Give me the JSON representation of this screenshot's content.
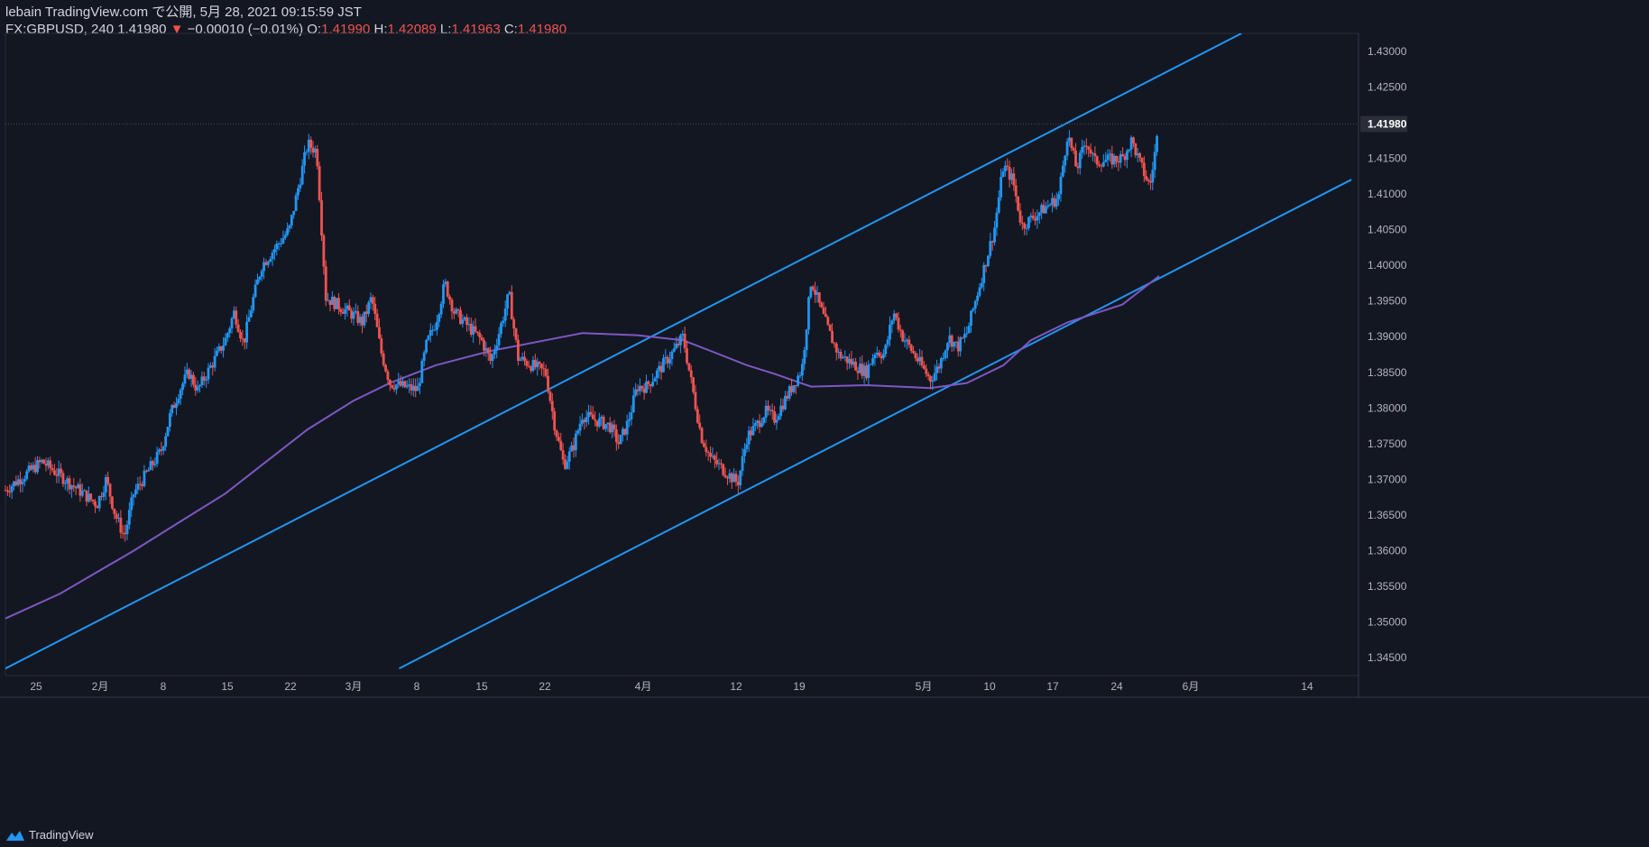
{
  "header": {
    "line1": "lebain TradingView.com で公開, 5月 28, 2021 09:15:59 JST",
    "symbol": "FX:GBPUSD, 240",
    "last": "1.41980",
    "change": "−0.00010 (−0.01%)",
    "o_label": "O:",
    "o_val": "1.41990",
    "h_label": "H:",
    "h_val": "1.42089",
    "l_label": "L:",
    "l_val": "1.41963",
    "c_label": "C:",
    "c_val": "1.41980"
  },
  "footer": {
    "brand": "TradingView"
  },
  "colors": {
    "background": "#131722",
    "up": "#2196f3",
    "down": "#ef5350",
    "ma": "#7e57c2",
    "trendline": "#2196f3",
    "text": "#d1d4dc",
    "axis_text": "#b2b5be"
  },
  "chart_data": {
    "type": "candlestick",
    "symbol": "FX:GBPUSD",
    "timeframe": "240",
    "x_tick_labels": [
      "25",
      "2月",
      "8",
      "15",
      "22",
      "3月",
      "8",
      "15",
      "22",
      "4月",
      "12",
      "19",
      "5月",
      "10",
      "17",
      "24",
      "6月",
      "14"
    ],
    "y_tick_labels": [
      "1.43000",
      "1.42500",
      "1.42000",
      "1.41500",
      "1.41000",
      "1.40500",
      "1.40000",
      "1.39500",
      "1.39000",
      "1.38500",
      "1.38000",
      "1.37500",
      "1.37000",
      "1.36500",
      "1.36000",
      "1.35500",
      "1.35000",
      "1.34500"
    ],
    "ylim": [
      1.3425,
      1.4325
    ],
    "last_price_label": "1.41980",
    "price_path": [
      [
        "2021-01-22",
        1.3685
      ],
      [
        "2021-01-26",
        1.3725
      ],
      [
        "2021-01-28",
        1.3705
      ],
      [
        "2021-01-29",
        1.3695
      ],
      [
        "2021-02-01",
        1.3665
      ],
      [
        "2021-02-02",
        1.37
      ],
      [
        "2021-02-03",
        1.365
      ],
      [
        "2021-02-04",
        1.362
      ],
      [
        "2021-02-05",
        1.368
      ],
      [
        "2021-02-08",
        1.374
      ],
      [
        "2021-02-09",
        1.379
      ],
      [
        "2021-02-10",
        1.3825
      ],
      [
        "2021-02-11",
        1.385
      ],
      [
        "2021-02-12",
        1.3825
      ],
      [
        "2021-02-15",
        1.3895
      ],
      [
        "2021-02-16",
        1.3935
      ],
      [
        "2021-02-17",
        1.389
      ],
      [
        "2021-02-18",
        1.395
      ],
      [
        "2021-02-19",
        1.4
      ],
      [
        "2021-02-22",
        1.405
      ],
      [
        "2021-02-23",
        1.411
      ],
      [
        "2021-02-24",
        1.417
      ],
      [
        "2021-02-25",
        1.416
      ],
      [
        "2021-02-26",
        1.3955
      ],
      [
        "2021-03-01",
        1.393
      ],
      [
        "2021-03-02",
        1.392
      ],
      [
        "2021-03-03",
        1.3955
      ],
      [
        "2021-03-04",
        1.388
      ],
      [
        "2021-03-05",
        1.3835
      ],
      [
        "2021-03-08",
        1.3825
      ],
      [
        "2021-03-09",
        1.389
      ],
      [
        "2021-03-10",
        1.392
      ],
      [
        "2021-03-11",
        1.3975
      ],
      [
        "2021-03-12",
        1.3935
      ],
      [
        "2021-03-15",
        1.3895
      ],
      [
        "2021-03-16",
        1.3865
      ],
      [
        "2021-03-17",
        1.391
      ],
      [
        "2021-03-18",
        1.396
      ],
      [
        "2021-03-19",
        1.387
      ],
      [
        "2021-03-22",
        1.385
      ],
      [
        "2021-03-23",
        1.3775
      ],
      [
        "2021-03-24",
        1.372
      ],
      [
        "2021-03-25",
        1.3745
      ],
      [
        "2021-03-26",
        1.379
      ],
      [
        "2021-03-29",
        1.3775
      ],
      [
        "2021-03-30",
        1.375
      ],
      [
        "2021-03-31",
        1.378
      ],
      [
        "2021-04-01",
        1.383
      ],
      [
        "2021-04-02",
        1.383
      ],
      [
        "2021-04-05",
        1.388
      ],
      [
        "2021-04-06",
        1.39
      ],
      [
        "2021-04-07",
        1.383
      ],
      [
        "2021-04-08",
        1.376
      ],
      [
        "2021-04-09",
        1.373
      ],
      [
        "2021-04-12",
        1.3695
      ],
      [
        "2021-04-13",
        1.376
      ],
      [
        "2021-04-14",
        1.3775
      ],
      [
        "2021-04-15",
        1.3795
      ],
      [
        "2021-04-16",
        1.3785
      ],
      [
        "2021-04-19",
        1.3855
      ],
      [
        "2021-04-20",
        1.398
      ],
      [
        "2021-04-21",
        1.394
      ],
      [
        "2021-04-22",
        1.3905
      ],
      [
        "2021-04-23",
        1.3875
      ],
      [
        "2021-04-26",
        1.385
      ],
      [
        "2021-04-27",
        1.388
      ],
      [
        "2021-04-28",
        1.3875
      ],
      [
        "2021-04-29",
        1.3935
      ],
      [
        "2021-04-30",
        1.39
      ],
      [
        "2021-05-03",
        1.384
      ],
      [
        "2021-05-04",
        1.386
      ],
      [
        "2021-05-05",
        1.39
      ],
      [
        "2021-05-06",
        1.3885
      ],
      [
        "2021-05-07",
        1.3905
      ],
      [
        "2021-05-10",
        1.405
      ],
      [
        "2021-05-11",
        1.414
      ],
      [
        "2021-05-12",
        1.412
      ],
      [
        "2021-05-13",
        1.4055
      ],
      [
        "2021-05-14",
        1.4065
      ],
      [
        "2021-05-17",
        1.4095
      ],
      [
        "2021-05-18",
        1.4185
      ],
      [
        "2021-05-19",
        1.4135
      ],
      [
        "2021-05-20",
        1.4175
      ],
      [
        "2021-05-21",
        1.4145
      ],
      [
        "2021-05-24",
        1.415
      ],
      [
        "2021-05-25",
        1.4175
      ],
      [
        "2021-05-26",
        1.414
      ],
      [
        "2021-05-27",
        1.411
      ],
      [
        "2021-05-28",
        1.4198
      ]
    ],
    "moving_average": {
      "color": "#7e57c2",
      "points": [
        [
          "2021-01-22",
          1.3505
        ],
        [
          "2021-01-28",
          1.354
        ],
        [
          "2021-02-01",
          1.357
        ],
        [
          "2021-02-05",
          1.36
        ],
        [
          "2021-02-10",
          1.364
        ],
        [
          "2021-02-15",
          1.368
        ],
        [
          "2021-02-19",
          1.372
        ],
        [
          "2021-02-24",
          1.377
        ],
        [
          "2021-03-01",
          1.381
        ],
        [
          "2021-03-05",
          1.3835
        ],
        [
          "2021-03-10",
          1.386
        ],
        [
          "2021-03-16",
          1.388
        ],
        [
          "2021-03-22",
          1.3895
        ],
        [
          "2021-03-26",
          1.3905
        ],
        [
          "2021-04-01",
          1.3902
        ],
        [
          "2021-04-06",
          1.3895
        ],
        [
          "2021-04-09",
          1.388
        ],
        [
          "2021-04-13",
          1.386
        ],
        [
          "2021-04-16",
          1.3848
        ],
        [
          "2021-04-20",
          1.383
        ],
        [
          "2021-04-26",
          1.3832
        ],
        [
          "2021-05-03",
          1.3828
        ],
        [
          "2021-05-07",
          1.3835
        ],
        [
          "2021-05-11",
          1.386
        ],
        [
          "2021-05-14",
          1.3895
        ],
        [
          "2021-05-18",
          1.392
        ],
        [
          "2021-05-24",
          1.3945
        ],
        [
          "2021-05-28",
          1.3985
        ]
      ]
    },
    "trendlines": [
      {
        "name": "upper",
        "points": [
          [
            "2021-01-22",
            1.3435
          ],
          [
            "2021-06-06",
            1.4325
          ]
        ]
      },
      {
        "name": "lower",
        "points": [
          [
            "2021-03-06",
            1.3435
          ],
          [
            "2021-06-18",
            1.412
          ]
        ]
      }
    ],
    "grid": false
  }
}
